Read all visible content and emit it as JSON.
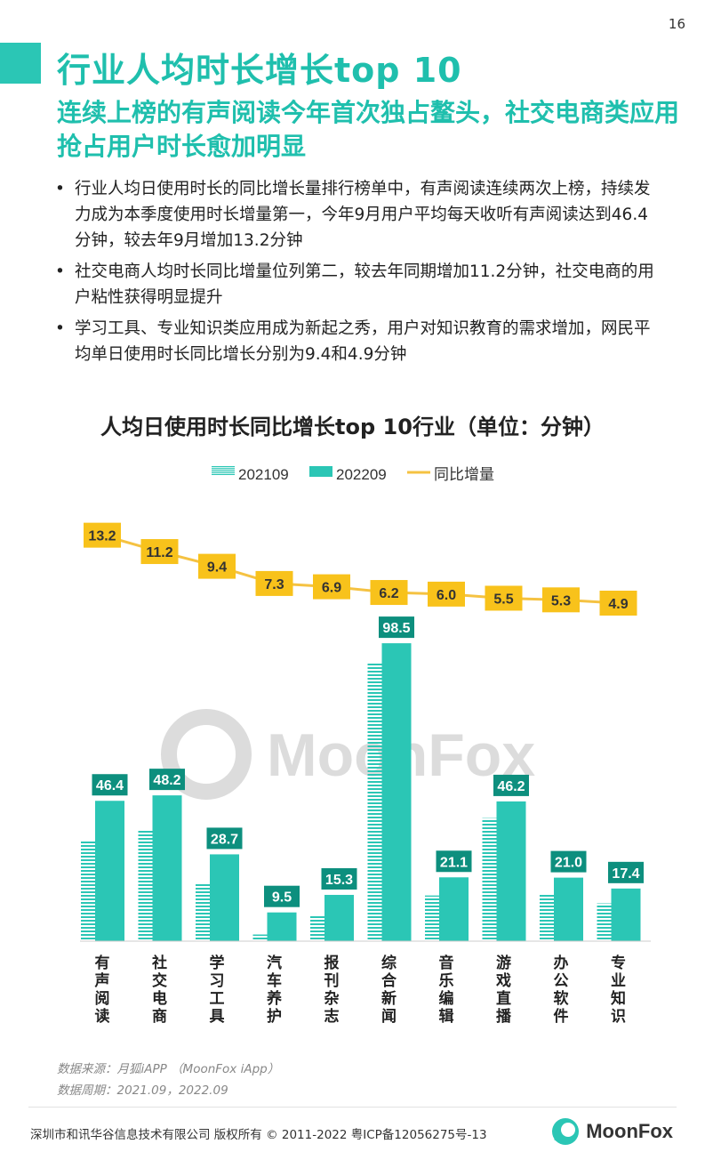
{
  "page_number": "16",
  "title": "行业人均时长增长top 10",
  "subtitle": "连续上榜的有声阅读今年首次独占鳌头，社交电商类应用抢占用户时长愈加明显",
  "bullets": [
    "行业人均日使用时长的同比增长量排行榜单中，有声阅读连续两次上榜，持续发力成为本季度使用时长增量第一，今年9月用户平均每天收听有声阅读达到46.4分钟，较去年9月增加13.2分钟",
    "社交电商人均时长同比增量位列第二，较去年同期增加11.2分钟，社交电商的用户粘性获得明显提升",
    "学习工具、专业知识类应用成为新起之秀，用户对知识教育的需求增加，网民平均单日使用时长同比增长分别为9.4和4.9分钟"
  ],
  "watermark": "MoonFox",
  "chart_data": {
    "type": "bar",
    "title": "人均日使用时长同比增长top 10行业（单位：分钟）",
    "categories": [
      "有声阅读",
      "社交电商",
      "学习工具",
      "汽车养护",
      "报刊杂志",
      "综合新闻",
      "音乐编辑",
      "游戏直播",
      "办公软件",
      "专业知识"
    ],
    "series": [
      {
        "name": "202109",
        "type": "bar",
        "pattern": "striped",
        "color": "#2bc6b5",
        "values": [
          33.2,
          37.0,
          19.3,
          2.2,
          8.4,
          92.3,
          15.1,
          40.7,
          15.7,
          12.5
        ]
      },
      {
        "name": "202209",
        "type": "bar",
        "pattern": "solid",
        "color": "#2bc6b5",
        "values": [
          46.4,
          48.2,
          28.7,
          9.5,
          15.3,
          98.5,
          21.1,
          46.2,
          21.0,
          17.4
        ]
      },
      {
        "name": "同比增量",
        "type": "line",
        "color": "#f5c242",
        "values": [
          13.2,
          11.2,
          9.4,
          7.3,
          6.9,
          6.2,
          6.0,
          5.5,
          5.3,
          4.9
        ]
      }
    ],
    "legend_position": "top-center",
    "grid": false,
    "colors": {
      "bar": "#2bc6b5",
      "bar_label_bg": "#0d8f7e",
      "line": "#f5c242",
      "line_label_bg": "#f8c21b"
    }
  },
  "source_lines": [
    "数据来源：月狐iAPP （MoonFox iApp）",
    "数据周期：2021.09，2022.09"
  ],
  "footer": {
    "copyright": "深圳市和讯华谷信息技术有限公司 版权所有 © 2011-2022 粤ICP备12056275号-13",
    "logo_text": "MoonFox"
  }
}
